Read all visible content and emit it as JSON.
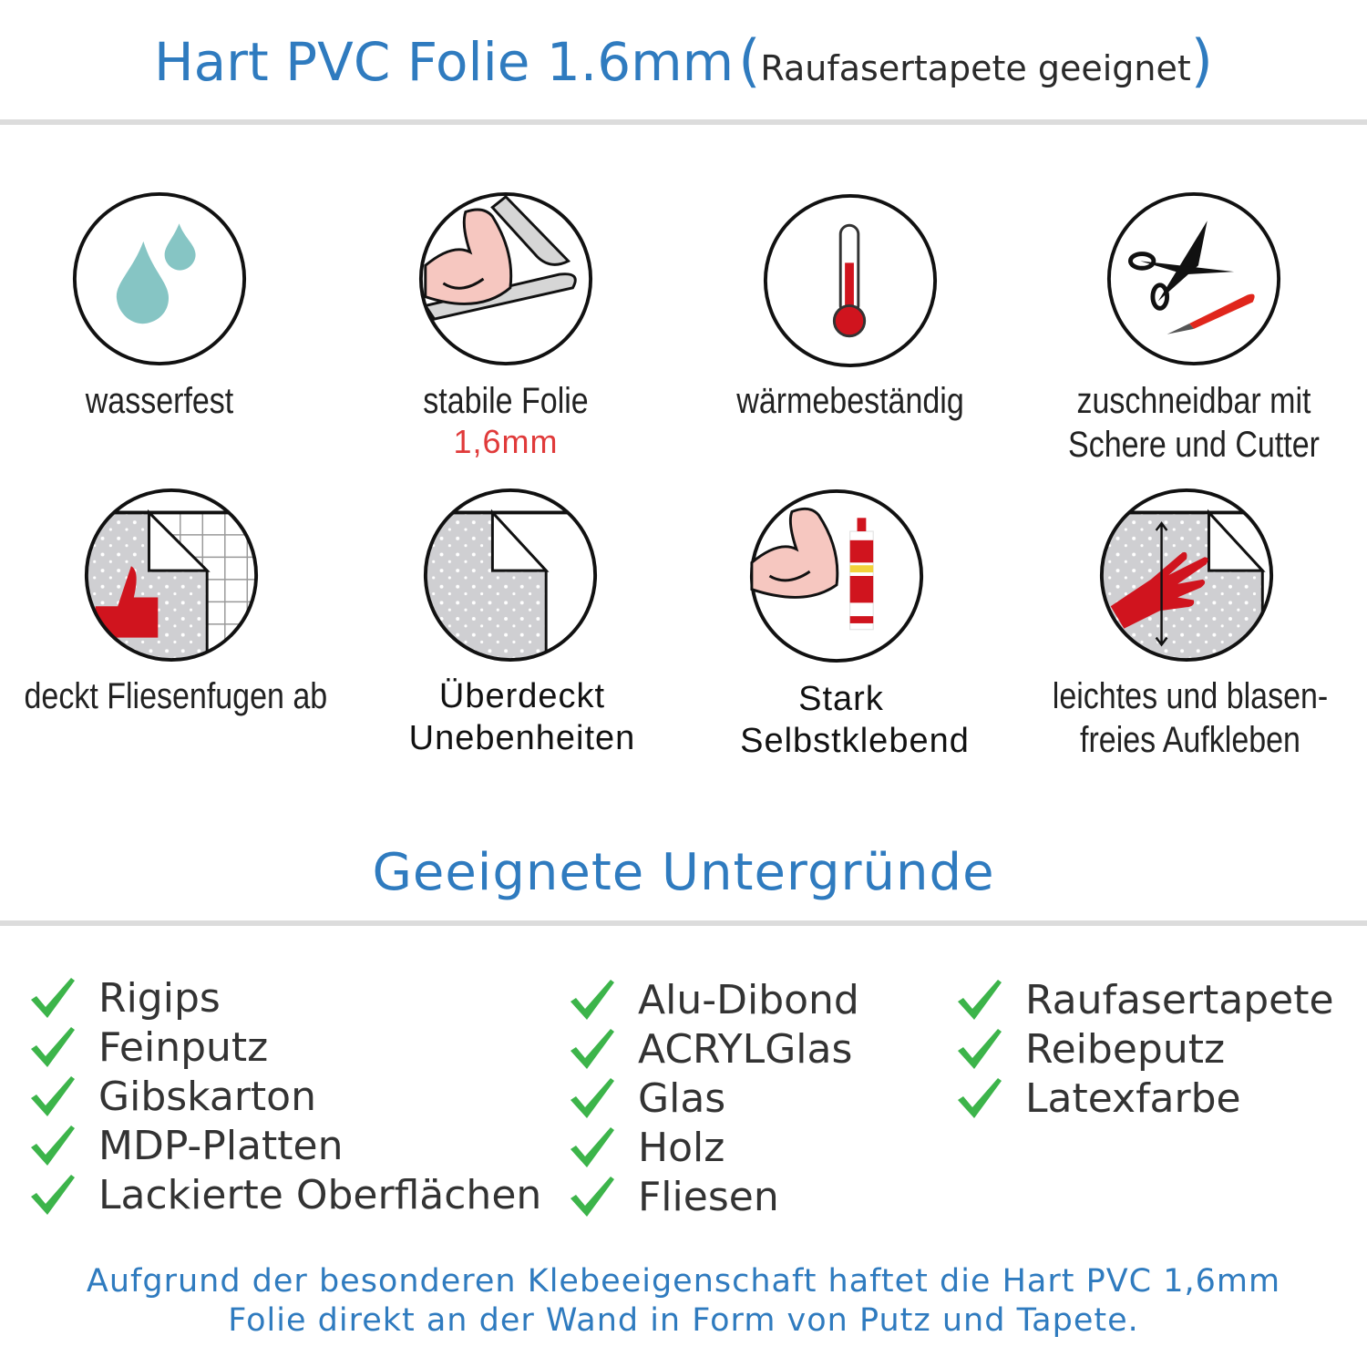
{
  "header": {
    "title": "Hart PVC Folie 1.6mm",
    "open_paren": "(",
    "subtitle": "Raufasertapete geeignet",
    "close_paren": ")"
  },
  "features": [
    {
      "icon": "water-drops-icon",
      "lines": [
        "wasserfest"
      ]
    },
    {
      "icon": "strong-film-icon",
      "lines": [
        "stabile Folie"
      ],
      "highlight": "1,6mm"
    },
    {
      "icon": "thermometer-icon",
      "lines": [
        "wärmebeständig"
      ]
    },
    {
      "icon": "scissors-cutter-icon",
      "lines": [
        "zuschneidbar mit",
        "Schere und Cutter"
      ]
    },
    {
      "icon": "tile-joints-icon",
      "lines": [
        "deckt Fliesenfugen ab"
      ]
    },
    {
      "icon": "uneven-surface-icon",
      "lines": [
        "Überdeckt",
        "Unebenheiten"
      ]
    },
    {
      "icon": "strong-adhesive-icon",
      "lines": [
        "Stark",
        "Selbstklebend"
      ]
    },
    {
      "icon": "hand-apply-icon",
      "lines": [
        "leichtes und blasen-",
        "freies Aufkleben"
      ]
    }
  ],
  "surfaces": {
    "title": "Geeignete Untergründe",
    "columns": [
      [
        "Rigips",
        "Feinputz",
        "Gibskarton",
        "MDP-Platten",
        "Lackierte Oberflächen"
      ],
      [
        "Alu-Dibond",
        "ACRYLGlas",
        "Glas",
        "Holz",
        "Fliesen"
      ],
      [
        "Raufasertapete",
        "Reibeputz",
        "Latexfarbe"
      ]
    ]
  },
  "footer": {
    "lines": [
      "Aufgrund der besonderen Klebeeigenschaft haftet die Hart PVC 1,6mm",
      "Folie direkt an der Wand in Form von Putz und Tapete."
    ]
  },
  "colors": {
    "accent": "#2f7bbf",
    "check": "#3cb44a",
    "highlight": "#e03a3a",
    "icon_red": "#d0141e",
    "water": "#86c5c4"
  }
}
